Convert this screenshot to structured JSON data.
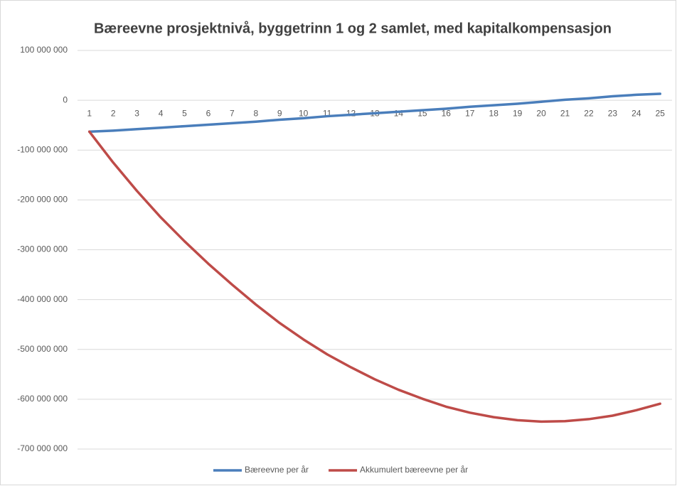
{
  "chart_data": {
    "type": "line",
    "title": "Bæreevne prosjektnivå, byggetrinn 1 og 2 samlet, med kapitalkompensasjon",
    "categories": [
      "1",
      "2",
      "3",
      "4",
      "5",
      "6",
      "7",
      "8",
      "9",
      "10",
      "11",
      "12",
      "13",
      "14",
      "15",
      "16",
      "17",
      "18",
      "19",
      "20",
      "21",
      "22",
      "23",
      "24",
      "25"
    ],
    "series": [
      {
        "name": "Bæreevne per år",
        "color": "#4a7ebb",
        "values": [
          -63000000,
          -61000000,
          -58000000,
          -55000000,
          -52000000,
          -49000000,
          -46000000,
          -43000000,
          -39000000,
          -36000000,
          -32000000,
          -29000000,
          -26000000,
          -23000000,
          -20000000,
          -17000000,
          -13000000,
          -10000000,
          -7000000,
          -3000000,
          1000000,
          4000000,
          8000000,
          11000000,
          13000000
        ]
      },
      {
        "name": "Akkumulert bæreevne per år",
        "color": "#be4b48",
        "values": [
          -63000000,
          -125000000,
          -182000000,
          -235000000,
          -283000000,
          -328000000,
          -370000000,
          -410000000,
          -447000000,
          -480000000,
          -510000000,
          -536000000,
          -560000000,
          -581000000,
          -599000000,
          -615000000,
          -627000000,
          -636000000,
          -642000000,
          -645000000,
          -644000000,
          -640000000,
          -633000000,
          -622000000,
          -609000000
        ]
      }
    ],
    "ylim": [
      -700000000,
      100000000
    ],
    "yticks": [
      {
        "value": -700000000,
        "label": "-700 000 000"
      },
      {
        "value": -600000000,
        "label": "-600 000 000"
      },
      {
        "value": -500000000,
        "label": "-500 000 000"
      },
      {
        "value": -400000000,
        "label": "-400 000 000"
      },
      {
        "value": -300000000,
        "label": "-300 000 000"
      },
      {
        "value": -200000000,
        "label": "-200 000 000"
      },
      {
        "value": -100000000,
        "label": "-100 000 000"
      },
      0,
      {
        "value": 100000000,
        "label": "100 000 000"
      }
    ],
    "grid": true,
    "legend": "bottom"
  }
}
